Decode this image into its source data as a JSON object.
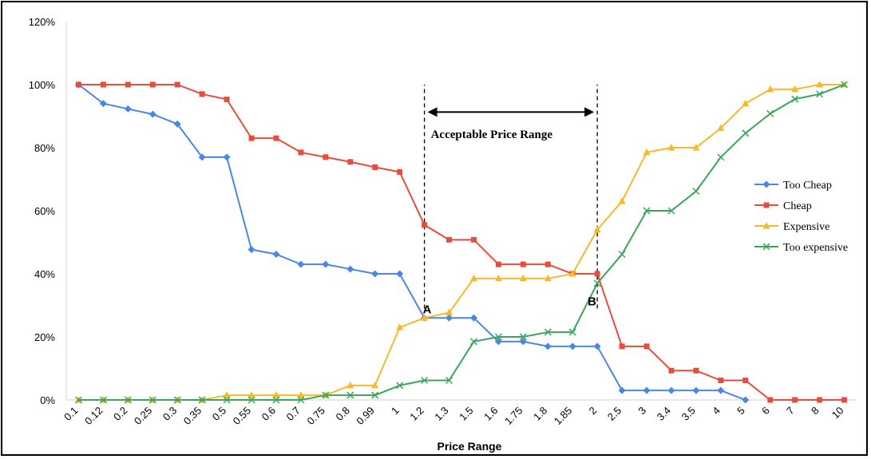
{
  "chart_data": {
    "type": "line",
    "xlabel": "Price Range",
    "ylabel": "",
    "ylim": [
      0,
      1.2
    ],
    "y_ticks": [
      "0%",
      "20%",
      "40%",
      "60%",
      "80%",
      "100%",
      "120%"
    ],
    "grid": false,
    "legend_position": "right",
    "categories": [
      "0.1",
      "0.12",
      "0.2",
      "0.25",
      "0.3",
      "0.35",
      "0.5",
      "0.55",
      "0.6",
      "0.7",
      "0.75",
      "0.8",
      "0.99",
      "1",
      "1.2",
      "1.3",
      "1.5",
      "1.6",
      "1.75",
      "1.8",
      "1.85",
      "2",
      "2.5",
      "3",
      "3.4",
      "3.5",
      "4",
      "5",
      "6",
      "7",
      "8",
      "10"
    ],
    "series": [
      {
        "name": "Too Cheap",
        "color": "#4a86e8",
        "marker": "diamond",
        "values": [
          1.0,
          0.94,
          0.923,
          0.906,
          0.875,
          0.77,
          0.77,
          0.477,
          0.462,
          0.43,
          0.43,
          0.415,
          0.4,
          0.4,
          0.26,
          0.26,
          0.26,
          0.185,
          0.185,
          0.17,
          0.17,
          0.17,
          0.03,
          0.03,
          0.03,
          0.03,
          0.03,
          0.0,
          null,
          null,
          null,
          null
        ]
      },
      {
        "name": "Cheap",
        "color": "#e84c3d",
        "marker": "square",
        "values": [
          1.0,
          1.0,
          1.0,
          1.0,
          1.0,
          0.97,
          0.953,
          0.83,
          0.83,
          0.785,
          0.77,
          0.755,
          0.738,
          0.723,
          0.555,
          0.508,
          0.508,
          0.43,
          0.43,
          0.43,
          0.4,
          0.4,
          0.17,
          0.17,
          0.093,
          0.093,
          0.062,
          0.062,
          0.0,
          0.0,
          0.0,
          0.0
        ]
      },
      {
        "name": "Expensive",
        "color": "#f6b92b",
        "marker": "triangle",
        "values": [
          0.0,
          0.0,
          0.0,
          0.0,
          0.0,
          0.0,
          0.015,
          0.015,
          0.015,
          0.015,
          0.015,
          0.046,
          0.046,
          0.23,
          0.26,
          0.277,
          0.385,
          0.385,
          0.385,
          0.385,
          0.4,
          0.54,
          0.63,
          0.785,
          0.8,
          0.8,
          0.862,
          0.94,
          0.985,
          0.985,
          1.0,
          1.0
        ]
      },
      {
        "name": "Too expensive",
        "color": "#3aa65a",
        "marker": "x",
        "values": [
          0.0,
          0.0,
          0.0,
          0.0,
          0.0,
          0.0,
          0.0,
          0.0,
          0.0,
          0.0,
          0.015,
          0.015,
          0.015,
          0.046,
          0.062,
          0.062,
          0.185,
          0.2,
          0.2,
          0.215,
          0.215,
          0.37,
          0.462,
          0.6,
          0.6,
          0.662,
          0.77,
          0.846,
          0.908,
          0.954,
          0.97,
          1.0
        ]
      }
    ],
    "annotations": {
      "range_label": "Acceptable Price Range",
      "point_a": "A",
      "point_b": "B",
      "range_start_index": 14,
      "range_end_index": 21
    }
  }
}
